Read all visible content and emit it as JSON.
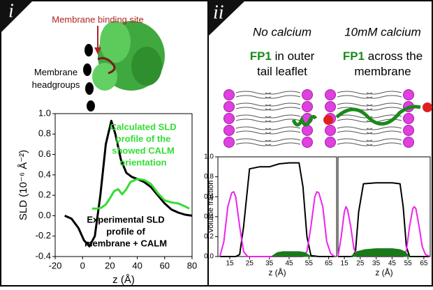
{
  "panels": {
    "left_label": "i",
    "right_label": "ii",
    "protein_labels": [
      "Membrane binding site",
      "Membrane headgroups"
    ],
    "conditions": [
      {
        "name": "No calcium",
        "highlight": "FP1",
        "lines": [
          "in outer",
          "tail leaflet"
        ]
      },
      {
        "name": "10mM calcium",
        "highlight": "FP1",
        "lines": [
          "across the",
          "membrane"
        ]
      }
    ]
  },
  "chart_data": [
    {
      "type": "line",
      "x_label": "z (Å)",
      "y_label": "SLD (10⁻⁶ Å⁻²)",
      "xlim": [
        -20,
        80
      ],
      "xticks": [
        -20,
        0,
        20,
        40,
        60,
        80
      ],
      "ylim": [
        -0.4,
        1.0
      ],
      "yticks": [
        {
          "value": -0.4,
          "label": "-0.4"
        },
        {
          "value": -0.2,
          "label": "-0.2"
        },
        {
          "value": 0,
          "label": "0.0"
        },
        {
          "value": 0.2,
          "label": "0.2"
        },
        {
          "value": 0.4,
          "label": "0.4"
        },
        {
          "value": 0.6,
          "label": "0.6"
        },
        {
          "value": 0.8,
          "label": "0.8"
        },
        {
          "value": 1.0,
          "label": "1.0"
        }
      ],
      "series": [
        {
          "name": "Experimental SLD",
          "color": "#000000",
          "x": [
            -13,
            -8,
            -3,
            1,
            5,
            9,
            13,
            17,
            21,
            24,
            28,
            32,
            36,
            40,
            45,
            50,
            55,
            60,
            65,
            70,
            75,
            80
          ],
          "values": [
            0.0,
            -0.03,
            -0.12,
            -0.24,
            -0.3,
            -0.2,
            0.2,
            0.7,
            0.93,
            0.8,
            0.55,
            0.42,
            0.38,
            0.36,
            0.33,
            0.28,
            0.2,
            0.12,
            0.06,
            0.03,
            0.01,
            0.0
          ]
        },
        {
          "name": "Calculated SLD",
          "color": "#33dd33",
          "x": [
            7,
            11,
            14,
            17,
            20,
            23,
            26,
            29,
            32,
            35,
            40,
            45,
            50,
            55,
            60,
            65,
            70,
            75,
            78
          ],
          "values": [
            0.07,
            0.07,
            0.08,
            0.11,
            0.17,
            0.24,
            0.26,
            0.21,
            0.26,
            0.33,
            0.36,
            0.35,
            0.31,
            0.22,
            0.15,
            0.13,
            0.12,
            0.09,
            0.07
          ]
        }
      ],
      "annotations": [
        {
          "lines": [
            "Calculated SLD",
            "profile of the",
            "showed CALM",
            "orientation"
          ],
          "color": "#33dd33"
        },
        {
          "lines": [
            "Experimental SLD",
            "profile of",
            "membrane + CALM"
          ],
          "color": "#000000"
        }
      ]
    },
    {
      "type": "line",
      "x_label": "z (Å)",
      "y_label": "Volume fraction",
      "xlim": [
        9,
        69
      ],
      "xticks": [
        15,
        25,
        35,
        45,
        55,
        65
      ],
      "ylim": [
        0,
        1.0
      ],
      "yticks": [
        {
          "value": 0,
          "label": "0.0"
        },
        {
          "value": 0.2,
          "label": "0.2"
        },
        {
          "value": 0.4,
          "label": "0.4"
        },
        {
          "value": 0.6,
          "label": "0.6"
        },
        {
          "value": 0.8,
          "label": "0.8"
        },
        {
          "value": 1.0,
          "label": "1.0"
        }
      ],
      "series": [
        {
          "color": "#000000",
          "x": [
            10,
            18,
            20,
            22,
            25,
            30,
            35,
            40,
            45,
            50,
            52,
            54,
            56,
            60,
            68
          ],
          "values": [
            0,
            0,
            0.02,
            0.3,
            0.88,
            0.9,
            0.9,
            0.93,
            0.94,
            0.94,
            0.7,
            0.2,
            0.01,
            0,
            0
          ]
        },
        {
          "color": "#ee22ee",
          "x": [
            10,
            12,
            14,
            16,
            17,
            18,
            20,
            22,
            24,
            52,
            54,
            56,
            58,
            59,
            60,
            62,
            64,
            66,
            68
          ],
          "values": [
            0,
            0.15,
            0.5,
            0.64,
            0.65,
            0.6,
            0.3,
            0.05,
            0,
            0,
            0.05,
            0.3,
            0.6,
            0.65,
            0.64,
            0.5,
            0.15,
            0.03,
            0
          ],
          "dashed": false
        },
        {
          "color": "#1a7a1a",
          "area": true,
          "x": [
            36,
            39,
            42,
            46,
            50,
            53,
            56
          ],
          "values": [
            0,
            0.04,
            0.05,
            0.05,
            0.05,
            0.04,
            0
          ]
        }
      ]
    },
    {
      "type": "line",
      "x_label": "z (Å)",
      "xlim": [
        11,
        69
      ],
      "ylim": [
        0,
        1.0
      ],
      "xticks": [
        15,
        25,
        35,
        45,
        55,
        65
      ],
      "series": [
        {
          "color": "#000000",
          "x": [
            11,
            20,
            22,
            24,
            27,
            35,
            45,
            50,
            52,
            54,
            56,
            69
          ],
          "values": [
            0,
            0,
            0.05,
            0.45,
            0.73,
            0.74,
            0.74,
            0.73,
            0.5,
            0.1,
            0,
            0
          ]
        },
        {
          "color": "#ee22ee",
          "x": [
            11,
            13,
            15,
            16,
            17,
            19,
            21,
            23,
            52,
            54,
            56,
            58,
            59,
            60,
            62,
            64,
            66,
            69
          ],
          "values": [
            0,
            0.2,
            0.45,
            0.5,
            0.47,
            0.3,
            0.08,
            0,
            0,
            0.06,
            0.3,
            0.48,
            0.5,
            0.48,
            0.3,
            0.1,
            0.02,
            0
          ],
          "dashed": false
        },
        {
          "color": "#1a7a1a",
          "area": true,
          "x": [
            19,
            23,
            28,
            35,
            45,
            50,
            53,
            56
          ],
          "values": [
            0,
            0.05,
            0.07,
            0.08,
            0.08,
            0.07,
            0.05,
            0
          ]
        }
      ]
    }
  ]
}
